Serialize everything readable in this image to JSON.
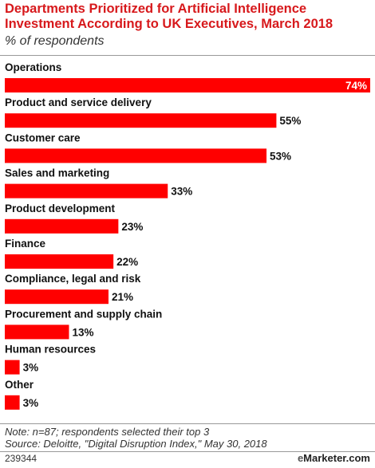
{
  "header": {
    "title_line1": "Departments Prioritized for Artificial Intelligence",
    "title_line2": "Investment According to UK Executives, March 2018",
    "subtitle": "% of respondents"
  },
  "chart_data": {
    "type": "bar",
    "orientation": "horizontal",
    "categories": [
      "Operations",
      "Product and service delivery",
      "Customer care",
      "Sales and marketing",
      "Product development",
      "Finance",
      "Compliance, legal and risk",
      "Procurement and supply chain",
      "Human resources",
      "Other"
    ],
    "values": [
      74,
      55,
      53,
      33,
      23,
      22,
      21,
      13,
      3,
      3
    ],
    "value_suffix": "%",
    "xlim": [
      0,
      74
    ],
    "bar_color": "#ff0000",
    "grid": false,
    "legend": "none"
  },
  "footnote": {
    "note": "Note: n=87; respondents selected their top 3",
    "source": "Source: Deloitte, \"Digital Disruption Index,\" May 30, 2018"
  },
  "footer": {
    "id": "239344",
    "brand_e": "e",
    "brand_rest": "Marketer.com"
  }
}
